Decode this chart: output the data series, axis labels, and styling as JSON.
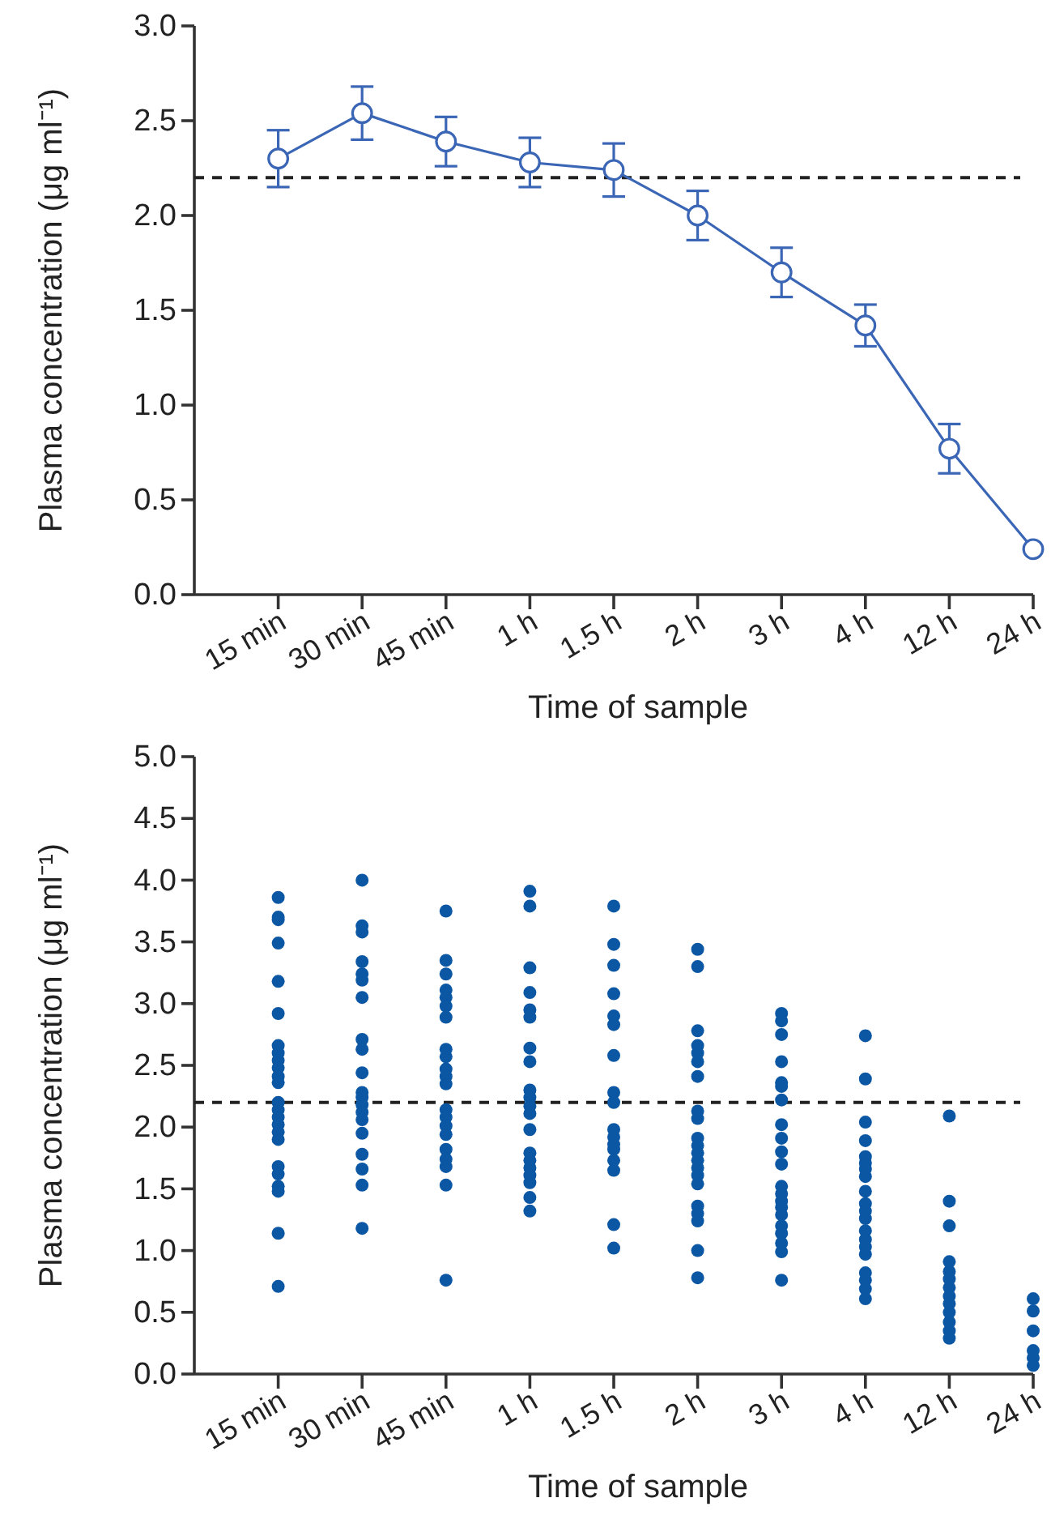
{
  "chart_data": [
    {
      "type": "line",
      "xlabel": "Time of sample",
      "ylabel": "Plasma concentration (μg ml⁻¹)",
      "categories": [
        "15 min",
        "30 min",
        "45 min",
        "1 h",
        "1.5 h",
        "2 h",
        "3 h",
        "4 h",
        "12 h",
        "24 h"
      ],
      "series": [
        {
          "color": "#3a66b5",
          "values": [
            2.3,
            2.54,
            2.39,
            2.28,
            2.24,
            2.0,
            1.7,
            1.42,
            0.77,
            0.24
          ],
          "errors": [
            0.15,
            0.14,
            0.13,
            0.13,
            0.14,
            0.13,
            0.13,
            0.11,
            0.13,
            null
          ]
        }
      ],
      "marker": "circle",
      "ylim": [
        0,
        3
      ],
      "yticks": [
        {
          "value": 0,
          "label": "0.0"
        },
        0.5,
        {
          "value": 1,
          "label": "1.0"
        },
        1.5,
        {
          "value": 2,
          "label": "2.0"
        },
        2.5,
        {
          "value": 3,
          "label": "3.0"
        }
      ],
      "ref_lines": [
        {
          "axis": "y",
          "value": 2.2,
          "color": "#222222",
          "line_style": "dashed"
        }
      ]
    },
    {
      "type": "scatter",
      "xlabel": "Time of sample",
      "ylabel": "Plasma concentration (μg ml⁻¹)",
      "categories": [
        "15 min",
        "30 min",
        "45 min",
        "1 h",
        "1.5 h",
        "2 h",
        "3 h",
        "4 h",
        "12 h",
        "24 h"
      ],
      "series": [
        {
          "color": "#0b57a4",
          "x": [
            "15 min",
            "15 min",
            "15 min",
            "15 min",
            "15 min",
            "15 min",
            "15 min",
            "15 min",
            "15 min",
            "15 min",
            "15 min",
            "15 min",
            "15 min",
            "15 min",
            "15 min",
            "15 min",
            "15 min",
            "15 min",
            "15 min",
            "15 min",
            "15 min",
            "15 min",
            "15 min",
            "15 min",
            "30 min",
            "30 min",
            "30 min",
            "30 min",
            "30 min",
            "30 min",
            "30 min",
            "30 min",
            "30 min",
            "30 min",
            "30 min",
            "30 min",
            "30 min",
            "30 min",
            "30 min",
            "30 min",
            "30 min",
            "30 min",
            "30 min",
            "30 min",
            "45 min",
            "45 min",
            "45 min",
            "45 min",
            "45 min",
            "45 min",
            "45 min",
            "45 min",
            "45 min",
            "45 min",
            "45 min",
            "45 min",
            "45 min",
            "45 min",
            "45 min",
            "45 min",
            "45 min",
            "45 min",
            "45 min",
            "45 min",
            "45 min",
            "1 h",
            "1 h",
            "1 h",
            "1 h",
            "1 h",
            "1 h",
            "1 h",
            "1 h",
            "1 h",
            "1 h",
            "1 h",
            "1 h",
            "1 h",
            "1 h",
            "1 h",
            "1 h",
            "1 h",
            "1 h",
            "1 h",
            "1 h",
            "1.5 h",
            "1.5 h",
            "1.5 h",
            "1.5 h",
            "1.5 h",
            "1.5 h",
            "1.5 h",
            "1.5 h",
            "1.5 h",
            "1.5 h",
            "1.5 h",
            "1.5 h",
            "1.5 h",
            "1.5 h",
            "1.5 h",
            "1.5 h",
            "1.5 h",
            "2 h",
            "2 h",
            "2 h",
            "2 h",
            "2 h",
            "2 h",
            "2 h",
            "2 h",
            "2 h",
            "2 h",
            "2 h",
            "2 h",
            "2 h",
            "2 h",
            "2 h",
            "2 h",
            "2 h",
            "2 h",
            "2 h",
            "2 h",
            "2 h",
            "3 h",
            "3 h",
            "3 h",
            "3 h",
            "3 h",
            "3 h",
            "3 h",
            "3 h",
            "3 h",
            "3 h",
            "3 h",
            "3 h",
            "3 h",
            "3 h",
            "3 h",
            "3 h",
            "3 h",
            "3 h",
            "3 h",
            "3 h",
            "3 h",
            "4 h",
            "4 h",
            "4 h",
            "4 h",
            "4 h",
            "4 h",
            "4 h",
            "4 h",
            "4 h",
            "4 h",
            "4 h",
            "4 h",
            "4 h",
            "4 h",
            "4 h",
            "4 h",
            "4 h",
            "4 h",
            "4 h",
            "4 h",
            "12 h",
            "12 h",
            "12 h",
            "12 h",
            "12 h",
            "12 h",
            "12 h",
            "12 h",
            "12 h",
            "12 h",
            "12 h",
            "12 h",
            "12 h",
            "24 h",
            "24 h",
            "24 h",
            "24 h",
            "24 h",
            "24 h"
          ],
          "values": [
            3.86,
            3.7,
            3.68,
            3.49,
            3.18,
            2.92,
            2.66,
            2.6,
            2.54,
            2.48,
            2.41,
            2.36,
            2.2,
            2.14,
            2.08,
            2.02,
            1.96,
            1.9,
            1.68,
            1.62,
            1.52,
            1.48,
            1.14,
            0.71,
            4.0,
            3.63,
            3.58,
            3.34,
            3.24,
            3.19,
            3.05,
            2.71,
            2.63,
            2.44,
            2.28,
            2.24,
            2.18,
            2.12,
            2.06,
            1.95,
            1.78,
            1.66,
            1.53,
            1.18,
            3.75,
            3.35,
            3.24,
            3.11,
            3.05,
            2.98,
            2.89,
            2.63,
            2.57,
            2.47,
            2.41,
            2.35,
            2.14,
            2.08,
            2.01,
            1.94,
            1.82,
            1.74,
            1.68,
            1.53,
            0.76,
            3.91,
            3.79,
            3.29,
            3.09,
            2.95,
            2.89,
            2.64,
            2.53,
            2.3,
            2.24,
            2.17,
            2.11,
            1.98,
            1.79,
            1.73,
            1.67,
            1.61,
            1.55,
            1.43,
            1.32,
            3.79,
            3.48,
            3.31,
            3.08,
            2.9,
            2.83,
            2.58,
            2.28,
            2.2,
            1.98,
            1.92,
            1.86,
            1.82,
            1.73,
            1.65,
            1.21,
            1.02,
            3.44,
            3.3,
            2.78,
            2.66,
            2.6,
            2.53,
            2.41,
            2.13,
            2.07,
            1.91,
            1.85,
            1.79,
            1.73,
            1.67,
            1.61,
            1.54,
            1.36,
            1.3,
            1.24,
            1.0,
            0.78,
            2.92,
            2.86,
            2.75,
            2.53,
            2.36,
            2.33,
            2.22,
            2.02,
            1.91,
            1.8,
            1.7,
            1.52,
            1.46,
            1.4,
            1.35,
            1.29,
            1.2,
            1.14,
            1.06,
            0.99,
            0.76,
            2.74,
            2.39,
            2.04,
            1.89,
            1.76,
            1.71,
            1.66,
            1.6,
            1.48,
            1.38,
            1.32,
            1.26,
            1.16,
            1.09,
            1.03,
            0.97,
            0.82,
            0.76,
            0.69,
            0.61,
            2.09,
            1.4,
            1.2,
            0.91,
            0.83,
            0.77,
            0.7,
            0.63,
            0.57,
            0.5,
            0.42,
            0.35,
            0.29,
            0.61,
            0.51,
            0.35,
            0.19,
            0.13,
            0.07
          ]
        }
      ],
      "ylim": [
        0,
        5
      ],
      "yticks": [
        {
          "value": 0,
          "label": "0.0"
        },
        0.5,
        {
          "value": 1,
          "label": "1.0"
        },
        1.5,
        {
          "value": 2,
          "label": "2.0"
        },
        2.5,
        {
          "value": 3,
          "label": "3.0"
        },
        3.5,
        {
          "value": 4,
          "label": "4.0"
        },
        4.5,
        {
          "value": 5,
          "label": "5.0"
        }
      ],
      "ref_lines": [
        {
          "axis": "y",
          "value": 2.2,
          "color": "#222222",
          "line_style": "dashed"
        }
      ]
    }
  ]
}
